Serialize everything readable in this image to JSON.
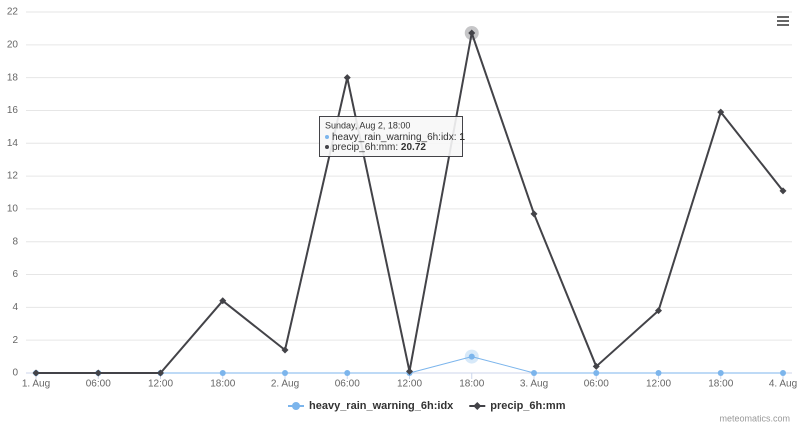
{
  "chart_data": {
    "type": "line",
    "categories": [
      "1. Aug",
      "06:00",
      "12:00",
      "18:00",
      "2. Aug",
      "06:00",
      "12:00",
      "18:00",
      "3. Aug",
      "06:00",
      "12:00",
      "18:00",
      "4. Aug"
    ],
    "series": [
      {
        "name": "heavy_rain_warning_6h:idx",
        "color": "#7cb5ec",
        "marker": "circle",
        "values": [
          0,
          0,
          0,
          0,
          0,
          0,
          0,
          1,
          0,
          0,
          0,
          0,
          0
        ]
      },
      {
        "name": "precip_6h:mm",
        "color": "#434348",
        "marker": "diamond",
        "values": [
          0,
          0,
          0,
          4.4,
          1.4,
          18.0,
          0.1,
          20.72,
          9.7,
          0.4,
          3.8,
          15.9,
          11.1
        ]
      }
    ],
    "ylim": [
      0,
      22
    ],
    "yticks": [
      0,
      2,
      4,
      6,
      8,
      10,
      12,
      14,
      16,
      18,
      20,
      22
    ],
    "grid": true,
    "legend": "bottom",
    "tooltip": {
      "header": "Sunday, Aug 2, 18:00",
      "separator": ": "
    },
    "credits": "meteomatics.com"
  }
}
